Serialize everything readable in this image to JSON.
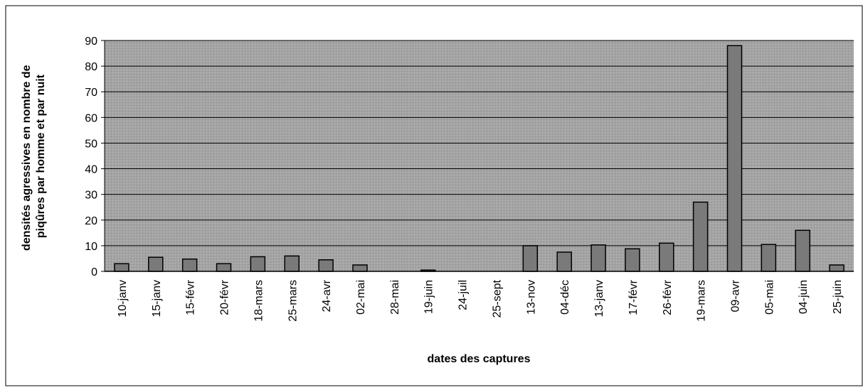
{
  "chart_data": {
    "type": "bar",
    "ylabel": [
      "densités agressives en nombre de",
      "piqûres par homme et par nuit"
    ],
    "xlabel": "dates des captures",
    "categories": [
      "10-janv",
      "15-janv",
      "15-févr",
      "20-févr",
      "18-mars",
      "25-mars",
      "24-avr",
      "02-mai",
      "28-mai",
      "19-juin",
      "24-juil",
      "25-sept",
      "13-nov",
      "04-déc",
      "13-janv",
      "17-févr",
      "26-févr",
      "19-mars",
      "09-avr",
      "05-mai",
      "04-juin",
      "25-juin"
    ],
    "values": [
      3,
      5.5,
      4.8,
      3,
      5.7,
      6,
      4.5,
      2.5,
      0,
      0.5,
      0,
      0,
      10,
      7.5,
      10.3,
      8.8,
      11,
      27,
      88,
      10.5,
      16,
      2.5
    ],
    "color": "#7a7a7a",
    "ylim": [
      0,
      90
    ],
    "yticks": [
      0,
      10,
      20,
      30,
      40,
      50,
      60,
      70,
      80,
      90
    ],
    "grid": true
  }
}
